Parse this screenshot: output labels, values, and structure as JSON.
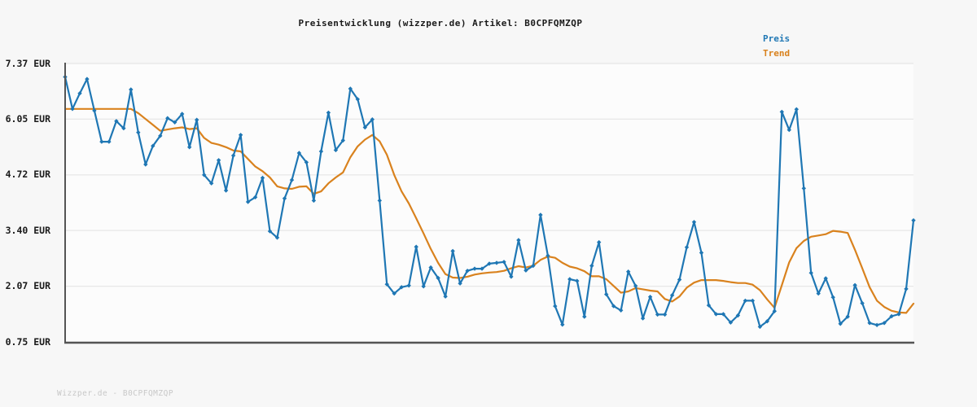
{
  "title": "Preisentwicklung (wizzper.de) Artikel: B0CPFQMZQP",
  "legend": {
    "price_label": "Preis",
    "trend_label": "Trend"
  },
  "watermark": "Wizzper.de - B0CPFQMZQP",
  "colors": {
    "price": "#1f77b4",
    "trend": "#d9821e",
    "axis": "#555555",
    "grid": "#e2e2e2",
    "plot_background": "#fcfcfc",
    "page_background": "#f7f7f7",
    "title_text": "#1a1a1a",
    "watermark_text": "#c8c8c8"
  },
  "y_axis": {
    "tick_labels": [
      "7.37 EUR",
      "6.05 EUR",
      "4.72 EUR",
      "3.40 EUR",
      "2.07 EUR",
      "0.75 EUR"
    ],
    "tick_values": [
      7.37,
      6.05,
      4.72,
      3.4,
      2.07,
      0.75
    ]
  },
  "chart_data": {
    "type": "line",
    "title": "Preisentwicklung (wizzper.de) Artikel: B0CPFQMZQP",
    "xlabel": "",
    "ylabel": "EUR",
    "ylim": [
      0.75,
      7.37
    ],
    "x_axis_note": "evenly spaced time samples, no x tick labels shown",
    "grid": "horizontal only",
    "legend_position": "top-right",
    "series": [
      {
        "name": "Preis",
        "color": "#1f77b4",
        "marker": "diamond",
        "values": [
          7.05,
          6.29,
          6.66,
          7.0,
          6.25,
          5.51,
          5.51,
          6.0,
          5.83,
          6.75,
          5.73,
          4.97,
          5.41,
          5.65,
          6.07,
          5.97,
          6.17,
          5.38,
          6.03,
          4.72,
          4.52,
          5.07,
          4.35,
          5.18,
          5.67,
          4.08,
          4.19,
          4.65,
          3.38,
          3.23,
          4.16,
          4.6,
          5.24,
          5.02,
          4.11,
          5.28,
          6.2,
          5.31,
          5.54,
          6.77,
          6.52,
          5.85,
          6.04,
          4.11,
          2.12,
          1.9,
          2.05,
          2.09,
          3.01,
          2.07,
          2.52,
          2.27,
          1.83,
          2.91,
          2.14,
          2.44,
          2.49,
          2.49,
          2.61,
          2.63,
          2.65,
          2.3,
          3.17,
          2.45,
          2.56,
          3.77,
          2.8,
          1.6,
          1.16,
          2.24,
          2.2,
          1.35,
          2.56,
          3.12,
          1.88,
          1.6,
          1.5,
          2.42,
          2.08,
          1.31,
          1.82,
          1.4,
          1.4,
          1.86,
          2.23,
          3.0,
          3.6,
          2.87,
          1.62,
          1.41,
          1.41,
          1.21,
          1.38,
          1.73,
          1.73,
          1.11,
          1.24,
          1.48,
          6.22,
          5.79,
          6.28,
          4.4,
          2.39,
          1.9,
          2.26,
          1.81,
          1.18,
          1.35,
          2.1,
          1.67,
          1.2,
          1.15,
          1.2,
          1.36,
          1.41,
          2.01,
          3.64
        ]
      },
      {
        "name": "Trend",
        "color": "#d9821e",
        "marker": "none",
        "values": [
          6.29,
          6.29,
          6.29,
          6.29,
          6.29,
          6.29,
          6.29,
          6.29,
          6.29,
          6.29,
          6.19,
          6.05,
          5.91,
          5.77,
          5.8,
          5.83,
          5.85,
          5.81,
          5.83,
          5.6,
          5.48,
          5.44,
          5.38,
          5.3,
          5.28,
          5.1,
          4.92,
          4.81,
          4.66,
          4.45,
          4.4,
          4.39,
          4.44,
          4.45,
          4.27,
          4.33,
          4.52,
          4.66,
          4.78,
          5.14,
          5.4,
          5.56,
          5.67,
          5.52,
          5.2,
          4.72,
          4.33,
          4.04,
          3.69,
          3.33,
          2.96,
          2.63,
          2.36,
          2.28,
          2.27,
          2.3,
          2.35,
          2.38,
          2.4,
          2.41,
          2.44,
          2.5,
          2.55,
          2.52,
          2.56,
          2.7,
          2.78,
          2.75,
          2.63,
          2.54,
          2.5,
          2.43,
          2.31,
          2.31,
          2.24,
          2.08,
          1.92,
          1.95,
          2.03,
          2.0,
          1.97,
          1.95,
          1.77,
          1.71,
          1.83,
          2.04,
          2.16,
          2.22,
          2.22,
          2.22,
          2.2,
          2.17,
          2.15,
          2.15,
          2.11,
          1.98,
          1.76,
          1.56,
          2.1,
          2.64,
          2.98,
          3.15,
          3.25,
          3.28,
          3.31,
          3.39,
          3.37,
          3.34,
          2.94,
          2.5,
          2.05,
          1.73,
          1.58,
          1.49,
          1.45,
          1.44,
          1.66
        ]
      }
    ]
  }
}
